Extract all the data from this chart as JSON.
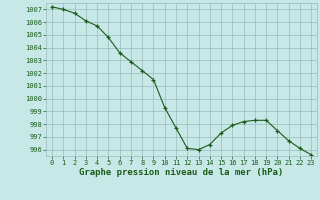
{
  "x": [
    0,
    1,
    2,
    3,
    4,
    5,
    6,
    7,
    8,
    9,
    10,
    11,
    12,
    13,
    14,
    15,
    16,
    17,
    18,
    19,
    20,
    21,
    22,
    23
  ],
  "y": [
    1007.2,
    1007.0,
    1006.7,
    1006.1,
    1005.7,
    1004.8,
    1003.6,
    1002.9,
    1002.2,
    1001.5,
    999.3,
    997.7,
    996.1,
    996.0,
    996.4,
    997.3,
    997.9,
    998.2,
    998.3,
    998.3,
    997.5,
    996.7,
    996.1,
    995.6
  ],
  "line_color": "#1a5c1a",
  "marker": "+",
  "marker_color": "#1a5c1a",
  "bg_color": "#c8e8e8",
  "grid_color": "#99bbbb",
  "title": "Graphe pression niveau de la mer (hPa)",
  "xlim": [
    -0.5,
    23.5
  ],
  "ylim": [
    995.5,
    1007.5
  ],
  "yticks": [
    996,
    997,
    998,
    999,
    1000,
    1001,
    1002,
    1003,
    1004,
    1005,
    1006,
    1007
  ],
  "xticks": [
    0,
    1,
    2,
    3,
    4,
    5,
    6,
    7,
    8,
    9,
    10,
    11,
    12,
    13,
    14,
    15,
    16,
    17,
    18,
    19,
    20,
    21,
    22,
    23
  ],
  "tick_color": "#1a5c1a",
  "label_color": "#1a5c1a",
  "title_fontsize": 6.5,
  "tick_fontsize": 5.0
}
